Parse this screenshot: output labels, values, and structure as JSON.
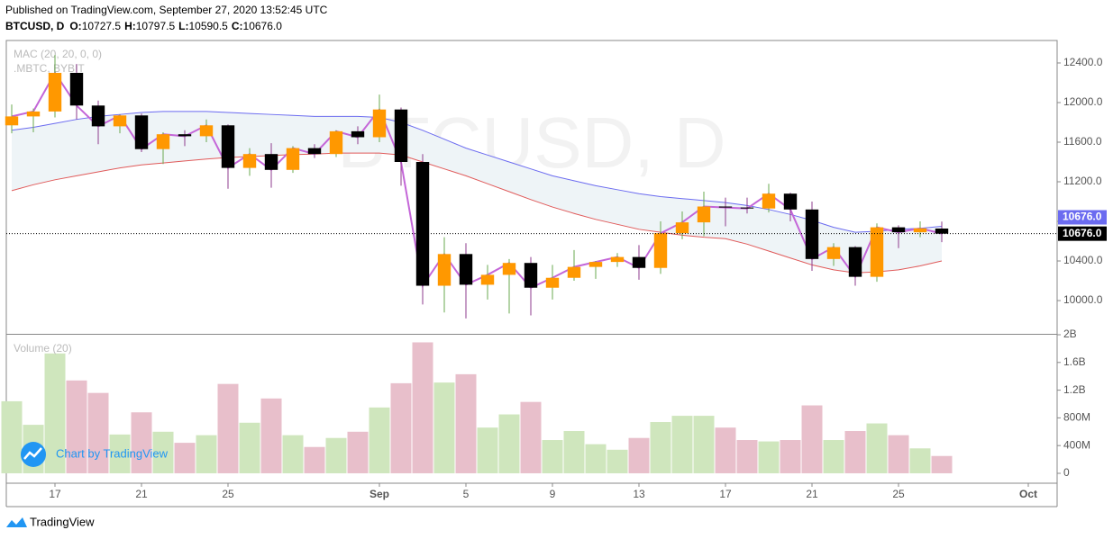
{
  "header": {
    "published": "Published on TradingView.com, September 27, 2020 13:52:45 UTC",
    "symbol": "BTCUSD, D",
    "ohlc": [
      {
        "key": "O:",
        "value": "10727.5"
      },
      {
        "key": "H:",
        "value": "10797.5"
      },
      {
        "key": "L:",
        "value": "10590.5"
      },
      {
        "key": "C:",
        "value": "10676.0"
      }
    ]
  },
  "branding": {
    "chart_by": "Chart by TradingView",
    "footer": "TradingView"
  },
  "chart_data": [
    {
      "type": "candlestick",
      "watermark": "BTCUSD, D",
      "annotations": [
        "MAC (20, 20, 0, 0)",
        ".MBTC, BYBIT"
      ],
      "x": [
        "2020-08-15",
        "2020-08-16",
        "2020-08-17",
        "2020-08-18",
        "2020-08-19",
        "2020-08-20",
        "2020-08-21",
        "2020-08-22",
        "2020-08-23",
        "2020-08-24",
        "2020-08-25",
        "2020-08-26",
        "2020-08-27",
        "2020-08-28",
        "2020-08-29",
        "2020-08-30",
        "2020-08-31",
        "2020-09-01",
        "2020-09-02",
        "2020-09-03",
        "2020-09-04",
        "2020-09-05",
        "2020-09-06",
        "2020-09-07",
        "2020-09-08",
        "2020-09-09",
        "2020-09-10",
        "2020-09-11",
        "2020-09-12",
        "2020-09-13",
        "2020-09-14",
        "2020-09-15",
        "2020-09-16",
        "2020-09-17",
        "2020-09-18",
        "2020-09-19",
        "2020-09-20",
        "2020-09-21",
        "2020-09-22",
        "2020-09-23",
        "2020-09-24",
        "2020-09-25",
        "2020-09-26",
        "2020-09-27"
      ],
      "open": [
        11770,
        11860,
        11910,
        12300,
        11970,
        11760,
        11870,
        11530,
        11680,
        11660,
        11770,
        11340,
        11480,
        11320,
        11540,
        11480,
        11710,
        11650,
        11930,
        11400,
        10150,
        10470,
        10160,
        10260,
        10380,
        10130,
        10230,
        10340,
        10390,
        10440,
        10330,
        10680,
        10790,
        10950,
        10940,
        10930,
        11080,
        10920,
        10420,
        10540,
        10240,
        10740,
        10690,
        10727.5
      ],
      "high": [
        11980,
        11940,
        12480,
        12390,
        12020,
        11880,
        11890,
        11700,
        11720,
        11830,
        11780,
        11540,
        11590,
        11560,
        11580,
        11720,
        11760,
        12080,
        11950,
        11480,
        10640,
        10580,
        10360,
        10420,
        10440,
        10360,
        10510,
        10400,
        10480,
        10560,
        10800,
        10900,
        11100,
        11040,
        11040,
        11180,
        11090,
        11000,
        10580,
        10550,
        10780,
        10760,
        10800,
        10797.5
      ],
      "low": [
        11690,
        11700,
        11850,
        11830,
        11580,
        11690,
        11500,
        11380,
        11560,
        11600,
        11130,
        11260,
        11140,
        11290,
        11440,
        11450,
        11580,
        11600,
        11160,
        9960,
        9880,
        9820,
        10010,
        9870,
        9850,
        10010,
        10200,
        10220,
        10340,
        10210,
        10270,
        10620,
        10650,
        10750,
        10880,
        10890,
        10800,
        10300,
        10350,
        10150,
        10190,
        10530,
        10640,
        10590.5
      ],
      "close": [
        11860,
        11910,
        12300,
        11970,
        11760,
        11870,
        11530,
        11680,
        11660,
        11770,
        11340,
        11480,
        11320,
        11540,
        11480,
        11710,
        11650,
        11930,
        11400,
        10150,
        10470,
        10160,
        10260,
        10380,
        10130,
        10230,
        10340,
        10390,
        10440,
        10330,
        10680,
        10790,
        10950,
        10940,
        10930,
        11080,
        10920,
        10420,
        10540,
        10240,
        10740,
        10690,
        10730,
        10676
      ],
      "up_color": "#ff9800",
      "down_color": "#000000",
      "close_line_color": "#c466d8",
      "series": [
        {
          "color": "#6b6bf0",
          "values": [
            11720,
            11750,
            11790,
            11830,
            11860,
            11880,
            11900,
            11910,
            11910,
            11910,
            11900,
            11890,
            11880,
            11870,
            11860,
            11860,
            11860,
            11850,
            11800,
            11720,
            11630,
            11540,
            11470,
            11400,
            11330,
            11260,
            11210,
            11160,
            11120,
            11080,
            11050,
            11030,
            11010,
            10990,
            10960,
            10920,
            10870,
            10810,
            10740,
            10690,
            10700,
            10720,
            10730,
            10750
          ]
        },
        {
          "color": "#e05a5a",
          "values": [
            11110,
            11170,
            11220,
            11260,
            11300,
            11340,
            11370,
            11390,
            11410,
            11430,
            11445,
            11455,
            11465,
            11475,
            11480,
            11490,
            11490,
            11490,
            11470,
            11400,
            11330,
            11260,
            11180,
            11100,
            11020,
            10945,
            10880,
            10820,
            10770,
            10720,
            10690,
            10660,
            10640,
            10625,
            10570,
            10500,
            10430,
            10360,
            10310,
            10280,
            10290,
            10310,
            10350,
            10400
          ]
        }
      ],
      "band_fill": "#eef4f7",
      "last_price": {
        "value": 10676,
        "label": "10676.0"
      },
      "ylim": [
        9664,
        12627
      ],
      "yticks": [
        {
          "value": 10000,
          "label": "10000.0"
        },
        {
          "value": 10400,
          "label": "10400.0"
        },
        {
          "value": 10800,
          "label": "10800.0"
        },
        {
          "value": 11200,
          "label": "11200.0"
        },
        {
          "value": 11600,
          "label": "11600.0"
        },
        {
          "value": 12000,
          "label": "12000.0"
        },
        {
          "value": 12400,
          "label": "12400.0"
        }
      ],
      "xlim": [
        "2020-08-14T18:00",
        "2020-10-02T08:00"
      ],
      "xticks": [
        {
          "value": "2020-08-17",
          "label": "17"
        },
        {
          "value": "2020-08-21",
          "label": "21"
        },
        {
          "value": "2020-08-25",
          "label": "25"
        },
        {
          "value": "2020-09-01",
          "label": "Sep"
        },
        {
          "value": "2020-09-05",
          "label": "5"
        },
        {
          "value": "2020-09-09",
          "label": "9"
        },
        {
          "value": "2020-09-13",
          "label": "13"
        },
        {
          "value": "2020-09-17",
          "label": "17"
        },
        {
          "value": "2020-09-21",
          "label": "21"
        },
        {
          "value": "2020-09-25",
          "label": "25"
        },
        {
          "value": "2020-10-01",
          "label": "Oct"
        }
      ]
    },
    {
      "type": "bar",
      "title": "Volume (20)",
      "x": [
        "2020-08-15",
        "2020-08-16",
        "2020-08-17",
        "2020-08-18",
        "2020-08-19",
        "2020-08-20",
        "2020-08-21",
        "2020-08-22",
        "2020-08-23",
        "2020-08-24",
        "2020-08-25",
        "2020-08-26",
        "2020-08-27",
        "2020-08-28",
        "2020-08-29",
        "2020-08-30",
        "2020-08-31",
        "2020-09-01",
        "2020-09-02",
        "2020-09-03",
        "2020-09-04",
        "2020-09-05",
        "2020-09-06",
        "2020-09-07",
        "2020-09-08",
        "2020-09-09",
        "2020-09-10",
        "2020-09-11",
        "2020-09-12",
        "2020-09-13",
        "2020-09-14",
        "2020-09-15",
        "2020-09-16",
        "2020-09-17",
        "2020-09-18",
        "2020-09-19",
        "2020-09-20",
        "2020-09-21",
        "2020-09-22",
        "2020-09-23",
        "2020-09-24",
        "2020-09-25",
        "2020-09-26",
        "2020-09-27"
      ],
      "values": [
        1040000000,
        700000000,
        1730000000,
        1340000000,
        1160000000,
        560000000,
        880000000,
        600000000,
        440000000,
        550000000,
        1290000000,
        730000000,
        1080000000,
        550000000,
        380000000,
        510000000,
        600000000,
        950000000,
        1300000000,
        1890000000,
        1310000000,
        1430000000,
        660000000,
        850000000,
        1030000000,
        480000000,
        610000000,
        420000000,
        340000000,
        510000000,
        740000000,
        830000000,
        830000000,
        660000000,
        480000000,
        460000000,
        480000000,
        980000000,
        480000000,
        610000000,
        720000000,
        550000000,
        360000000,
        250000000
      ],
      "up_color": "#cfe6bd",
      "down_color": "#e8bfcb",
      "ylim": [
        -143000000,
        2000000000
      ],
      "yticks": [
        0,
        {
          "value": 400000000,
          "label": "400M"
        },
        {
          "value": 800000000,
          "label": "800M"
        },
        {
          "value": 1200000000,
          "label": "1.2B"
        },
        {
          "value": 1600000000,
          "label": "1.6B"
        },
        {
          "value": 2000000000,
          "label": "2B"
        }
      ]
    }
  ]
}
